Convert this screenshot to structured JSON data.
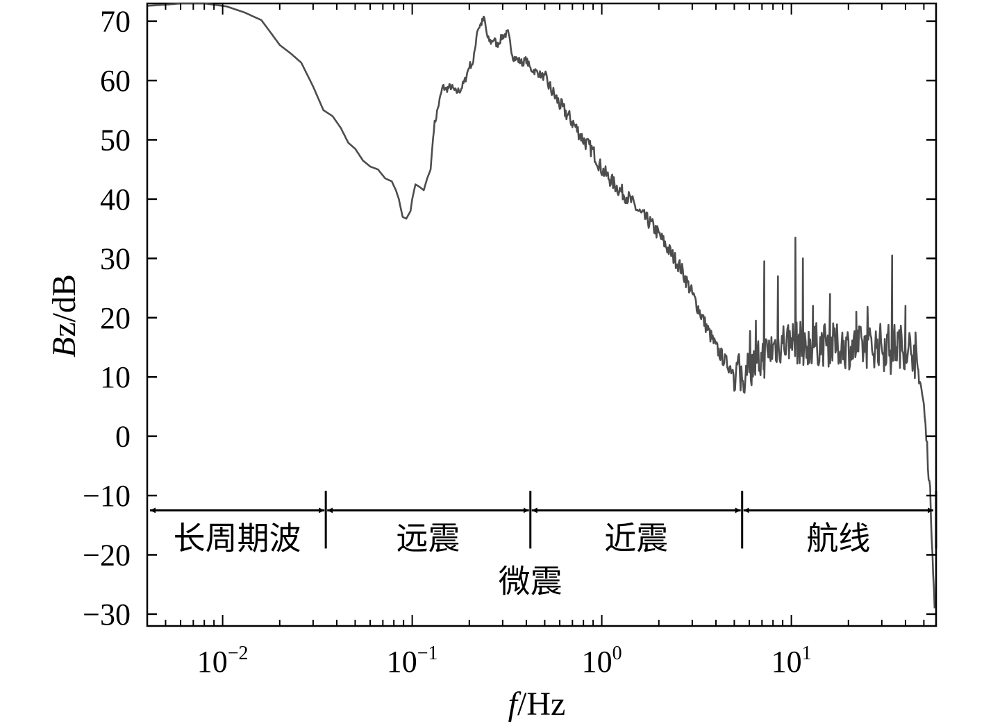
{
  "chart_data": {
    "type": "line",
    "xlabel": {
      "italic": "f",
      "rest": "/Hz"
    },
    "ylabel": {
      "italic": "B",
      "rest": "z/dB"
    },
    "x_scale": "log",
    "xlim": [
      0.004,
      58
    ],
    "ylim": [
      -32,
      73
    ],
    "grid": false,
    "y_ticks": [
      70,
      60,
      50,
      40,
      30,
      20,
      10,
      0,
      -10,
      -20,
      -30
    ],
    "y_tick_labels": [
      "70",
      "60",
      "50",
      "40",
      "30",
      "20",
      "10",
      "0",
      "−10",
      "−20",
      "−30"
    ],
    "x_ticks": [
      {
        "value": 0.01,
        "base": "10",
        "exp": "−2"
      },
      {
        "value": 0.1,
        "base": "10",
        "exp": "−1"
      },
      {
        "value": 1,
        "base": "10",
        "exp": "0"
      },
      {
        "value": 10,
        "base": "10",
        "exp": "1"
      }
    ],
    "line_color": "#4d4d4d",
    "series": [
      {
        "name": "",
        "points": [
          [
            0.004,
            72.6
          ],
          [
            0.005,
            72.8
          ],
          [
            0.006,
            73.0
          ],
          [
            0.007,
            73.0
          ],
          [
            0.008,
            73.0
          ],
          [
            0.009,
            72.8
          ],
          [
            0.0105,
            72.5
          ],
          [
            0.013,
            71.5
          ],
          [
            0.016,
            70.2
          ],
          [
            0.018,
            68.0
          ],
          [
            0.02,
            66.0
          ],
          [
            0.023,
            64.5
          ],
          [
            0.026,
            63.0
          ],
          [
            0.03,
            59.0
          ],
          [
            0.034,
            55.0
          ],
          [
            0.038,
            54.0
          ],
          [
            0.042,
            52.0
          ],
          [
            0.046,
            49.5
          ],
          [
            0.05,
            48.5
          ],
          [
            0.055,
            46.5
          ],
          [
            0.06,
            45.5
          ],
          [
            0.066,
            45.0
          ],
          [
            0.072,
            43.5
          ],
          [
            0.078,
            43.0
          ],
          [
            0.082,
            41.5
          ],
          [
            0.085,
            40.0
          ],
          [
            0.089,
            37.0
          ],
          [
            0.093,
            36.7
          ],
          [
            0.098,
            38.0
          ],
          [
            0.1,
            40.0
          ],
          [
            0.104,
            42.5
          ],
          [
            0.11,
            42.0
          ],
          [
            0.115,
            41.5
          ],
          [
            0.12,
            43.5
          ],
          [
            0.125,
            45.0
          ],
          [
            0.13,
            52.0
          ],
          [
            0.138,
            56.0
          ],
          [
            0.145,
            59.0
          ],
          [
            0.15,
            58.5
          ],
          [
            0.16,
            59.0
          ],
          [
            0.17,
            58.0
          ],
          [
            0.18,
            58.5
          ],
          [
            0.19,
            60.0
          ],
          [
            0.2,
            62.5
          ],
          [
            0.21,
            63.0
          ],
          [
            0.22,
            68.5
          ],
          [
            0.23,
            69.5
          ],
          [
            0.24,
            70.5
          ],
          [
            0.25,
            67.0
          ],
          [
            0.26,
            66.5
          ],
          [
            0.27,
            67.0
          ],
          [
            0.28,
            66.0
          ],
          [
            0.3,
            67.5
          ],
          [
            0.32,
            68.0
          ],
          [
            0.34,
            64.0
          ],
          [
            0.36,
            63.5
          ],
          [
            0.38,
            63.0
          ],
          [
            0.4,
            63.5
          ],
          [
            0.42,
            62.0
          ],
          [
            0.45,
            61.5
          ],
          [
            0.5,
            60.5
          ],
          [
            0.55,
            58.0
          ],
          [
            0.6,
            56.0
          ],
          [
            0.7,
            53.0
          ],
          [
            0.8,
            50.0
          ],
          [
            0.9,
            48.0
          ],
          [
            1.0,
            45.0
          ],
          [
            1.2,
            42.0
          ],
          [
            1.4,
            40.0
          ],
          [
            1.6,
            37.5
          ],
          [
            1.8,
            36.0
          ],
          [
            2.0,
            34.0
          ],
          [
            2.3,
            31.0
          ],
          [
            2.6,
            28.5
          ],
          [
            3.0,
            24.0
          ],
          [
            3.5,
            19.0
          ],
          [
            4.0,
            15.0
          ],
          [
            4.5,
            12.5
          ],
          [
            5.0,
            11.0
          ],
          [
            5.5,
            10.0
          ],
          [
            6.0,
            11.5
          ],
          [
            7.0,
            13.0
          ],
          [
            8.0,
            15.0
          ],
          [
            9.0,
            16.0
          ],
          [
            10.0,
            16.0
          ],
          [
            12.0,
            15.5
          ],
          [
            15.0,
            15.5
          ],
          [
            20.0,
            15.0
          ],
          [
            25.0,
            15.0
          ],
          [
            30.0,
            15.5
          ],
          [
            35.0,
            15.5
          ],
          [
            40.0,
            15.0
          ],
          [
            44.0,
            14.5
          ],
          [
            46.0,
            12.0
          ],
          [
            48.0,
            9.0
          ],
          [
            50.0,
            5.0
          ],
          [
            52.0,
            -2.0
          ],
          [
            54.0,
            -10.0
          ],
          [
            56.0,
            -22.0
          ],
          [
            57.0,
            -29.0
          ]
        ]
      }
    ],
    "peaks": [
      [
        6.5,
        19.5
      ],
      [
        7.2,
        29.5
      ],
      [
        8.5,
        27.0
      ],
      [
        10.5,
        33.5
      ],
      [
        11.5,
        30.0
      ],
      [
        13.0,
        22.0
      ],
      [
        16.0,
        24.0
      ],
      [
        22.0,
        21.0
      ],
      [
        34.0,
        30.5
      ],
      [
        40.0,
        22.0
      ]
    ],
    "band_boundaries": [
      0.004,
      0.035,
      0.42,
      5.5,
      58
    ],
    "band_labels": [
      "长周期波",
      "远震",
      "近震",
      "航线"
    ],
    "band_annotation_y": -12.5,
    "sub_label": "微震"
  }
}
